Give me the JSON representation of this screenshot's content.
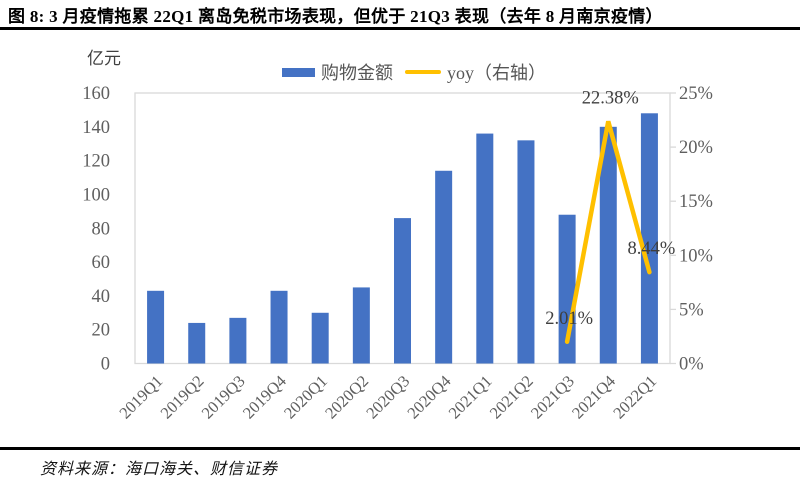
{
  "title": {
    "text": "图 8: 3 月疫情拖累 22Q1 离岛免税市场表现，但优于 21Q3 表现（去年 8 月南京疫情）"
  },
  "footer": {
    "text": "资料来源：海口海关、财信证券"
  },
  "legend": {
    "items": [
      {
        "label": "购物金额",
        "color": "#4472C4",
        "marker": "bar"
      },
      {
        "label": "yoy（右轴）",
        "color": "#FFC000",
        "marker": "line"
      }
    ]
  },
  "chart_data": {
    "type": "bar+line",
    "title": "图 8: 3 月疫情拖累 22Q1 离岛免税市场表现，但优于 21Q3 表现（去年 8 月南京疫情）",
    "categories": [
      "2019Q1",
      "2019Q2",
      "2019Q3",
      "2019Q4",
      "2020Q1",
      "2020Q2",
      "2020Q3",
      "2020Q4",
      "2021Q1",
      "2021Q2",
      "2021Q3",
      "2021Q4",
      "2022Q1"
    ],
    "series": [
      {
        "name": "购物金额",
        "type": "bar",
        "axis": "left",
        "color": "#4472C4",
        "values": [
          43,
          24,
          27,
          43,
          30,
          45,
          86,
          114,
          136,
          132,
          88,
          140,
          148
        ]
      },
      {
        "name": "yoy（右轴）",
        "type": "line",
        "axis": "right",
        "color": "#FFC000",
        "values": [
          null,
          null,
          null,
          null,
          null,
          null,
          null,
          null,
          null,
          null,
          2.01,
          22.38,
          8.44
        ],
        "data_labels": [
          "2.01%",
          "22.38%",
          "8.44%"
        ]
      }
    ],
    "left_axis": {
      "label": "亿元",
      "ticks": [
        0,
        20,
        40,
        60,
        80,
        100,
        120,
        140,
        160
      ],
      "min": 0,
      "max": 160
    },
    "right_axis": {
      "ticks": [
        0,
        5,
        10,
        15,
        20,
        25
      ],
      "suffix": "%",
      "min": 0,
      "max": 25
    },
    "grid": false,
    "legend_position": "top",
    "colors": {
      "bar": "#4472C4",
      "line": "#FFC000",
      "axis_text": "#5f5f5f",
      "label_text": "#3f3f3f",
      "plot_border": "#d9d9d9"
    }
  }
}
